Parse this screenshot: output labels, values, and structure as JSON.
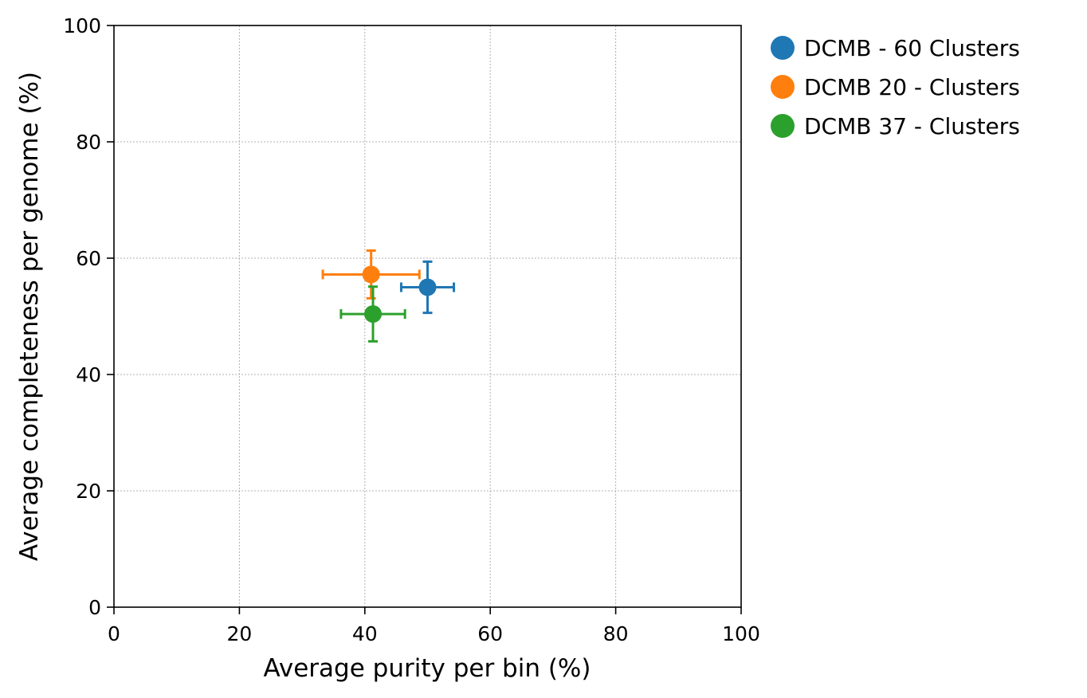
{
  "chart_data": {
    "type": "scatter",
    "xlabel": "Average purity per bin (%)",
    "ylabel": "Average completeness per genome (%)",
    "xlim": [
      0,
      100
    ],
    "ylim": [
      0,
      100
    ],
    "xticks": [
      0,
      20,
      40,
      60,
      80,
      100
    ],
    "yticks": [
      0,
      20,
      40,
      60,
      80,
      100
    ],
    "grid": true,
    "legend_position": "outside-top-right",
    "series": [
      {
        "name": "DCMB - 60 Clusters",
        "color": "#1f77b4",
        "x": 50.0,
        "y": 55.0,
        "xerr": 4.2,
        "yerr": 4.4
      },
      {
        "name": "DCMB 20 - Clusters",
        "color": "#ff7f0e",
        "x": 41.0,
        "y": 57.2,
        "xerr": 7.7,
        "yerr": 4.1
      },
      {
        "name": "DCMB 37 - Clusters",
        "color": "#2ca02c",
        "x": 41.3,
        "y": 50.4,
        "xerr": 5.1,
        "yerr": 4.7
      }
    ]
  }
}
